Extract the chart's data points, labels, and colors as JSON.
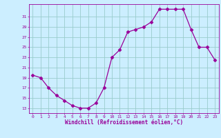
{
  "x": [
    0,
    1,
    2,
    3,
    4,
    5,
    6,
    7,
    8,
    9,
    10,
    11,
    12,
    13,
    14,
    15,
    16,
    17,
    18,
    19,
    20,
    21,
    22,
    23
  ],
  "y": [
    19.5,
    19.0,
    17.0,
    15.5,
    14.5,
    13.5,
    13.0,
    13.0,
    14.0,
    17.0,
    23.0,
    24.5,
    28.0,
    28.5,
    29.0,
    30.0,
    32.5,
    32.5,
    32.5,
    32.5,
    28.5,
    25.0,
    25.0,
    22.5
  ],
  "line_color": "#990099",
  "marker": "D",
  "marker_size": 2.5,
  "bg_color": "#cceeff",
  "grid_color": "#99cccc",
  "xlabel": "Windchill (Refroidissement éolien,°C)",
  "xlabel_color": "#990099",
  "tick_color": "#990099",
  "yticks": [
    13,
    15,
    17,
    19,
    21,
    23,
    25,
    27,
    29,
    31
  ],
  "xticks": [
    0,
    1,
    2,
    3,
    4,
    5,
    6,
    7,
    8,
    9,
    10,
    11,
    12,
    13,
    14,
    15,
    16,
    17,
    18,
    19,
    20,
    21,
    22,
    23
  ],
  "ylim": [
    12.0,
    33.5
  ],
  "xlim": [
    -0.5,
    23.5
  ]
}
